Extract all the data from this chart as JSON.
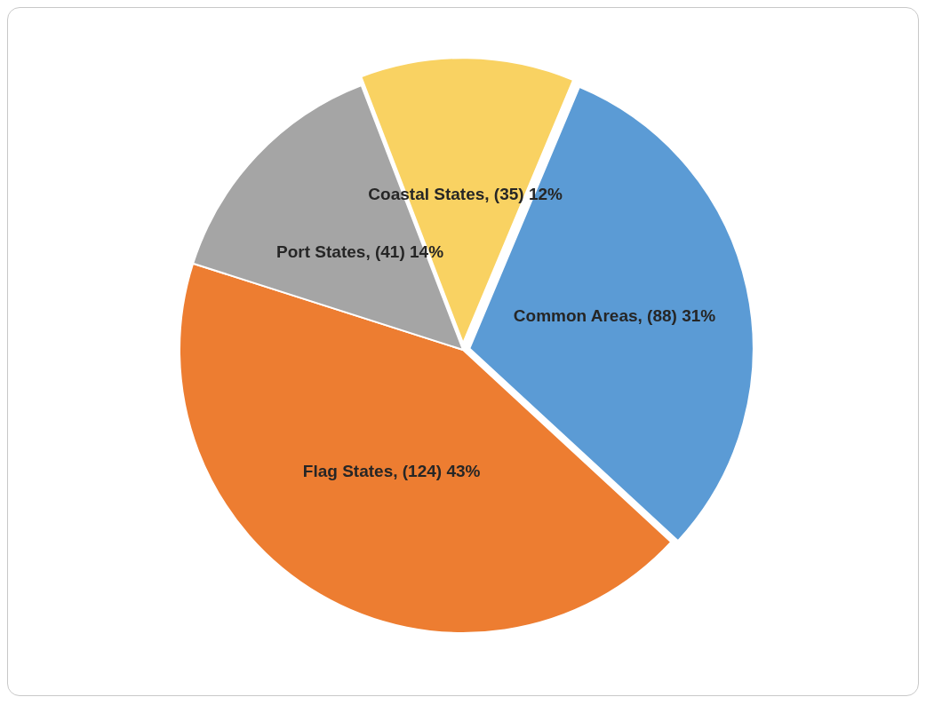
{
  "chart_data": {
    "type": "pie",
    "categories": [
      "Coastal States",
      "Common Areas",
      "Flag States",
      "Port States"
    ],
    "values": [
      35,
      88,
      124,
      41
    ],
    "colors": [
      "#f9d262",
      "#5b9bd5",
      "#ed7d31",
      "#a5a5a5"
    ],
    "value_labels": [
      "(35) 12%",
      "(88) 31%",
      "(124) 43%",
      "(41) 14%"
    ],
    "legend": false
  }
}
